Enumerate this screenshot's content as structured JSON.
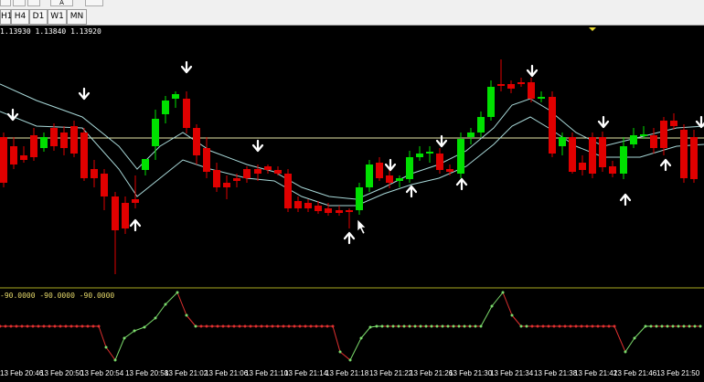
{
  "toolbar": {
    "timeframes": [
      "H1",
      "H4",
      "D1",
      "W1",
      "MN"
    ],
    "tool_labels": [
      "A"
    ]
  },
  "chart": {
    "ohlc_text": "1.13930 1.13840 1.13920",
    "indicator_values": "-90.0000 -90.0000 -90.0000",
    "time_labels": [
      "13 Feb 20:46",
      "13 Feb 20:50",
      "13 Feb 20:54",
      "13 Feb 20:58",
      "13 Feb 21:02",
      "13 Feb 21:06",
      "13 Feb 21:10",
      "13 Feb 21:14",
      "13 Feb 21:18",
      "13 Feb 21:22",
      "13 Feb 21:26",
      "13 Feb 21:30",
      "13 Feb 21:34",
      "13 Feb 21:38",
      "13 Feb 21:42",
      "13 Feb 21:46",
      "13 Feb 21:50"
    ],
    "colors": {
      "bull": "#00e000",
      "bear": "#e00000",
      "ma": "#a8d8d8",
      "hline": "#e8e8a8",
      "separator": "#a8a820",
      "arrow": "#ffffff",
      "oscillator_up": "#7cdc6c",
      "oscillator_down": "#e03030"
    },
    "up_arrow_icon": "arrow-up-icon",
    "down_arrow_icon": "arrow-down-icon"
  }
}
